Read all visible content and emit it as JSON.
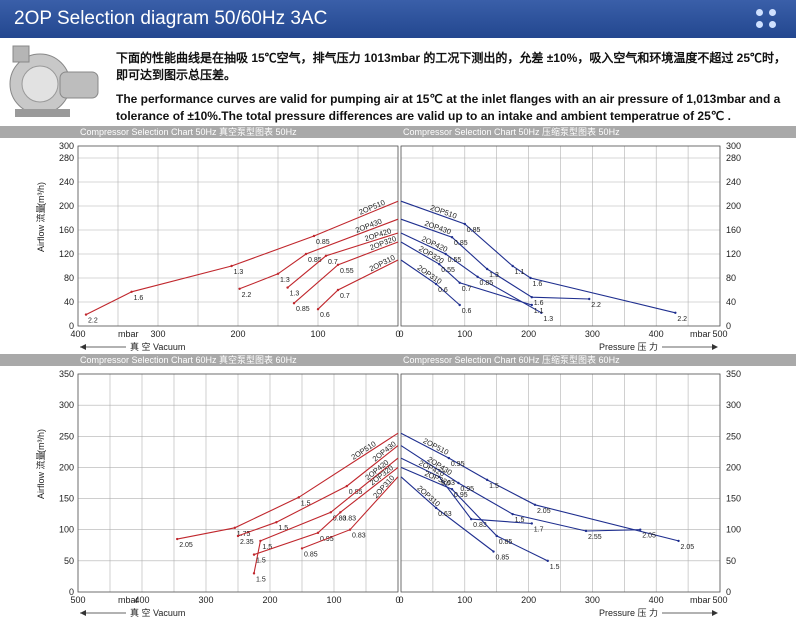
{
  "header": {
    "title": "2OP Selection diagram 50/60Hz 3AC"
  },
  "intro": {
    "cn": "下面的性能曲线是在抽吸 15℃空气，排气压力 1013mbar 的工况下测出的，允差 ±10%，吸入空气和环境温度不超过 25℃时，即可达到图示总压差。",
    "en": "The performance curves are valid for pumping air at 15℃ at the inlet flanges with an air pressure of 1,013mbar and a tolerance of ±10%.The total pressure differences are valid up to an intake and ambient temperatrue of 25℃ ."
  },
  "colors": {
    "vacuum": "#c0272d",
    "pressure": "#1f2f8f",
    "stripe": "#a9a9a9",
    "header": "#2f559e"
  },
  "chart_data": [
    {
      "type": "line",
      "left_title": "Compressor Selection Chart 50Hz  真空泵型图表 50Hz",
      "right_title": "Compressor Selection Chart 50Hz  压缩泵型图表 50Hz",
      "ylabel": "Airflow 流量",
      "yunit": "(m³/h)",
      "ylim": [
        0,
        300
      ],
      "yticks": [
        "0",
        "40",
        "80",
        "120",
        "160",
        "200",
        "240",
        "280",
        "300"
      ],
      "vacuum_xlim": [
        400,
        0
      ],
      "vacuum_xticks": [
        "400",
        "300",
        "200",
        "100",
        "0"
      ],
      "pressure_xlim": [
        0,
        500
      ],
      "pressure_xticks": [
        "0",
        "100",
        "200",
        "300",
        "400",
        "500"
      ],
      "xunit": "mbar",
      "vacuum_axis": "真 空 Vacuum",
      "pressure_axis": "Pressure 压 力",
      "grid": true,
      "vacuum": [
        {
          "name": "2OP510",
          "points": [
            [
              0,
              208
            ],
            [
              105,
              150
            ],
            [
              208,
              100
            ],
            [
              333,
              57
            ],
            [
              390,
              19
            ]
          ],
          "labels": [
            "",
            "0.85",
            "1.3",
            "1.6",
            "2.2"
          ]
        },
        {
          "name": "2OP430",
          "points": [
            [
              0,
              178
            ],
            [
              115,
              120
            ],
            [
              150,
              87
            ],
            [
              198,
              62
            ]
          ],
          "labels": [
            "",
            "0.85",
            "1.3",
            "2.2"
          ]
        },
        {
          "name": "2OP420",
          "points": [
            [
              0,
              155
            ],
            [
              90,
              117
            ],
            [
              138,
              64
            ]
          ],
          "labels": [
            "",
            "0.7",
            "1.3"
          ]
        },
        {
          "name": "2OP320",
          "points": [
            [
              0,
              140
            ],
            [
              75,
              102
            ],
            [
              130,
              38
            ]
          ],
          "labels": [
            "",
            "0.55",
            "0.85"
          ]
        },
        {
          "name": "2OP310",
          "points": [
            [
              0,
              110
            ],
            [
              75,
              60
            ],
            [
              100,
              28
            ]
          ],
          "labels": [
            "",
            "0.7",
            "0.6"
          ]
        }
      ],
      "pressure": [
        {
          "name": "2OP510",
          "points": [
            [
              0,
              208
            ],
            [
              100,
              170
            ],
            [
              175,
              100
            ],
            [
              203,
              80
            ],
            [
              430,
              22
            ]
          ],
          "labels": [
            "",
            "0.85",
            "1.1",
            "1.6",
            "2.2"
          ]
        },
        {
          "name": "2OP430",
          "points": [
            [
              0,
              178
            ],
            [
              80,
              148
            ],
            [
              135,
              95
            ],
            [
              205,
              48
            ],
            [
              295,
              45
            ]
          ],
          "labels": [
            "",
            "0.85",
            "1.3",
            "1.6",
            "2.2"
          ]
        },
        {
          "name": "2OP420",
          "points": [
            [
              0,
              155
            ],
            [
              70,
              120
            ],
            [
              120,
              82
            ],
            [
              220,
              22
            ]
          ],
          "labels": [
            "",
            "0.55",
            "0.85",
            "1.3"
          ]
        },
        {
          "name": "2OP320",
          "points": [
            [
              0,
              140
            ],
            [
              60,
              103
            ],
            [
              92,
              72
            ],
            [
              205,
              35
            ]
          ],
          "labels": [
            "",
            "0.55",
            "0.7",
            "1.1"
          ]
        },
        {
          "name": "2OP310",
          "points": [
            [
              0,
              110
            ],
            [
              55,
              70
            ],
            [
              92,
              35
            ]
          ],
          "labels": [
            "",
            "0.6",
            "0.6"
          ]
        }
      ]
    },
    {
      "type": "line",
      "left_title": "Compressor Selection Chart 60Hz  真空泵型图表 60Hz",
      "right_title": "Compressor Selection Chart 60Hz  压缩泵型图表 60Hz",
      "ylabel": "Airflow 流量",
      "yunit": "(m³/h)",
      "ylim": [
        0,
        350
      ],
      "yticks": [
        "0",
        "50",
        "100",
        "150",
        "200",
        "250",
        "300",
        "350"
      ],
      "vacuum_xlim": [
        500,
        0
      ],
      "vacuum_xticks": [
        "500",
        "400",
        "300",
        "200",
        "100",
        "0"
      ],
      "pressure_xlim": [
        0,
        500
      ],
      "pressure_xticks": [
        "0",
        "100",
        "200",
        "300",
        "400",
        "500"
      ],
      "xunit": "mbar",
      "vacuum_axis": "真 空 Vacuum",
      "pressure_axis": "Pressure 压 力",
      "grid": true,
      "vacuum": [
        {
          "name": "2OP510",
          "points": [
            [
              0,
              255
            ],
            [
              155,
              152
            ],
            [
              255,
              103
            ],
            [
              345,
              85
            ]
          ],
          "labels": [
            "",
            "1.5",
            "1.75",
            "2.05"
          ]
        },
        {
          "name": "2OP430",
          "points": [
            [
              0,
              235
            ],
            [
              80,
              170
            ],
            [
              190,
              112
            ],
            [
              250,
              90
            ]
          ],
          "labels": [
            "",
            "0.85",
            "1.5",
            "2.35"
          ]
        },
        {
          "name": "2OP420",
          "points": [
            [
              0,
              215
            ],
            [
              105,
              128
            ],
            [
              215,
              82
            ],
            [
              225,
              30
            ]
          ],
          "labels": [
            "",
            "0.83",
            "1.5",
            "1.5"
          ]
        },
        {
          "name": "2OP320",
          "points": [
            [
              0,
              200
            ],
            [
              90,
              128
            ],
            [
              125,
              95
            ],
            [
              225,
              60
            ]
          ],
          "labels": [
            "",
            "0.83",
            "0.95",
            "1.5"
          ]
        },
        {
          "name": "2OP310",
          "points": [
            [
              0,
              185
            ],
            [
              75,
              100
            ],
            [
              150,
              70
            ]
          ],
          "labels": [
            "",
            "0.83",
            "0.85"
          ]
        }
      ],
      "pressure": [
        {
          "name": "2OP510",
          "points": [
            [
              0,
              255
            ],
            [
              75,
              215
            ],
            [
              135,
              180
            ],
            [
              210,
              140
            ],
            [
              435,
              82
            ]
          ],
          "labels": [
            "",
            "0.95",
            "1.5",
            "2.05",
            "2.05"
          ]
        },
        {
          "name": "2OP430",
          "points": [
            [
              0,
              235
            ],
            [
              90,
              175
            ],
            [
              175,
              125
            ],
            [
              290,
              98
            ],
            [
              375,
              100
            ]
          ],
          "labels": [
            "",
            "0.95",
            "1.5",
            "2.55",
            "2.05"
          ]
        },
        {
          "name": "2OP420",
          "points": [
            [
              0,
              215
            ],
            [
              60,
              185
            ],
            [
              110,
              117
            ],
            [
              205,
              110
            ]
          ],
          "labels": [
            "",
            "0.63",
            "0.83",
            "1.7"
          ]
        },
        {
          "name": "2OP320",
          "points": [
            [
              0,
              200
            ],
            [
              80,
              165
            ],
            [
              150,
              90
            ],
            [
              230,
              50
            ]
          ],
          "labels": [
            "",
            "0.95",
            "0.85",
            "1.5"
          ]
        },
        {
          "name": "2OP310",
          "points": [
            [
              0,
              185
            ],
            [
              55,
              135
            ],
            [
              145,
              65
            ]
          ],
          "labels": [
            "",
            "0.63",
            "0.85"
          ]
        }
      ]
    }
  ]
}
